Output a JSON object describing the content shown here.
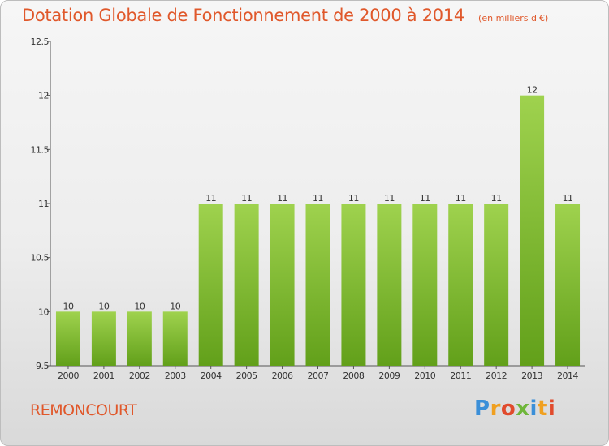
{
  "title": "Dotation Globale de Fonctionnement de 2000 à 2014",
  "subtitle": "(en milliers d'€)",
  "commune": "REMONCOURT",
  "logo": {
    "text": "Proxiti",
    "colors": [
      "#3b8fd8",
      "#f0a020",
      "#e14b2d",
      "#6fb63a"
    ]
  },
  "colors": {
    "accent": "#e0582b",
    "bar_light": "#9fd24e",
    "bar_dark": "#62a01a",
    "axis": "#555555"
  },
  "chart_data": {
    "type": "bar",
    "categories": [
      "2000",
      "2001",
      "2002",
      "2003",
      "2004",
      "2005",
      "2006",
      "2007",
      "2008",
      "2009",
      "2010",
      "2011",
      "2012",
      "2013",
      "2014"
    ],
    "values": [
      10,
      10,
      10,
      10,
      11,
      11,
      11,
      11,
      11,
      11,
      11,
      11,
      11,
      12,
      11
    ],
    "value_labels": [
      "10",
      "10",
      "10",
      "10",
      "11",
      "11",
      "11",
      "11",
      "11",
      "11",
      "11",
      "11",
      "11",
      "12",
      "11"
    ],
    "yticks": [
      "9.5",
      "10",
      "10.5",
      "11",
      "11.5",
      "12",
      "12.5"
    ],
    "ylim": [
      9.5,
      12.5
    ],
    "grid": false,
    "legend": "none"
  }
}
